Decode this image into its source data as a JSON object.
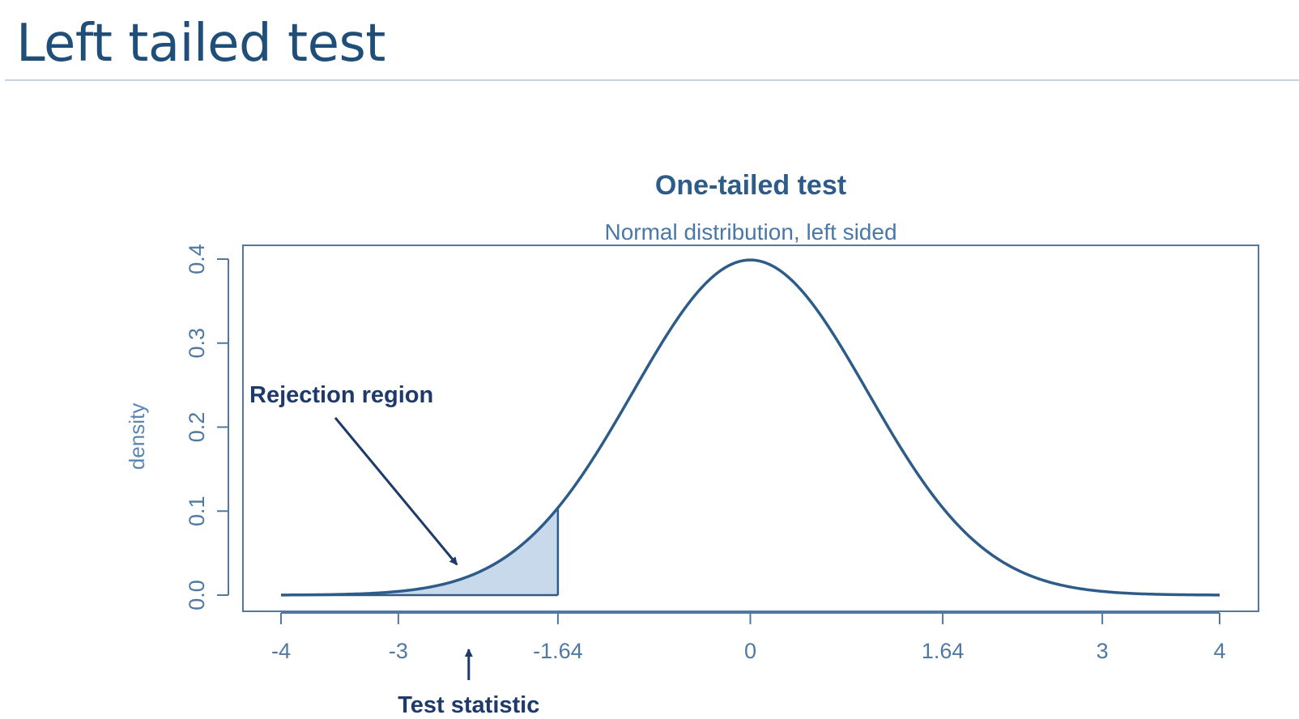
{
  "slide": {
    "title": "Left tailed test"
  },
  "chart_data": {
    "type": "area",
    "title": "One-tailed test",
    "subtitle": "Normal distribution, left sided",
    "xlabel": "",
    "ylabel": "density",
    "xlim": [
      -4,
      4
    ],
    "ylim": [
      0,
      0.4
    ],
    "x_ticks": [
      -4,
      -3,
      -1.64,
      0,
      1.64,
      3,
      4
    ],
    "x_tick_labels": [
      "-4",
      "-3",
      "-1.64",
      "0",
      "1.64",
      "3",
      "4"
    ],
    "y_ticks": [
      0.0,
      0.1,
      0.2,
      0.3,
      0.4
    ],
    "y_tick_labels": [
      "0.0",
      "0.1",
      "0.2",
      "0.3",
      "0.4"
    ],
    "series": [
      {
        "distribution": "standard normal density",
        "mean": 0,
        "sd": 1,
        "x_range": [
          -4,
          4
        ],
        "color": "#2e5c8a"
      }
    ],
    "shaded_region": {
      "from": -4,
      "to": -1.64,
      "fill": "#c9d9ec"
    },
    "annotations": [
      {
        "text": "Rejection region",
        "arrow_to": {
          "x": -2.5,
          "y": 0.017
        }
      },
      {
        "text": "Test statistic",
        "points_to_x": -2.4
      }
    ],
    "grid": false,
    "legend": "none"
  }
}
